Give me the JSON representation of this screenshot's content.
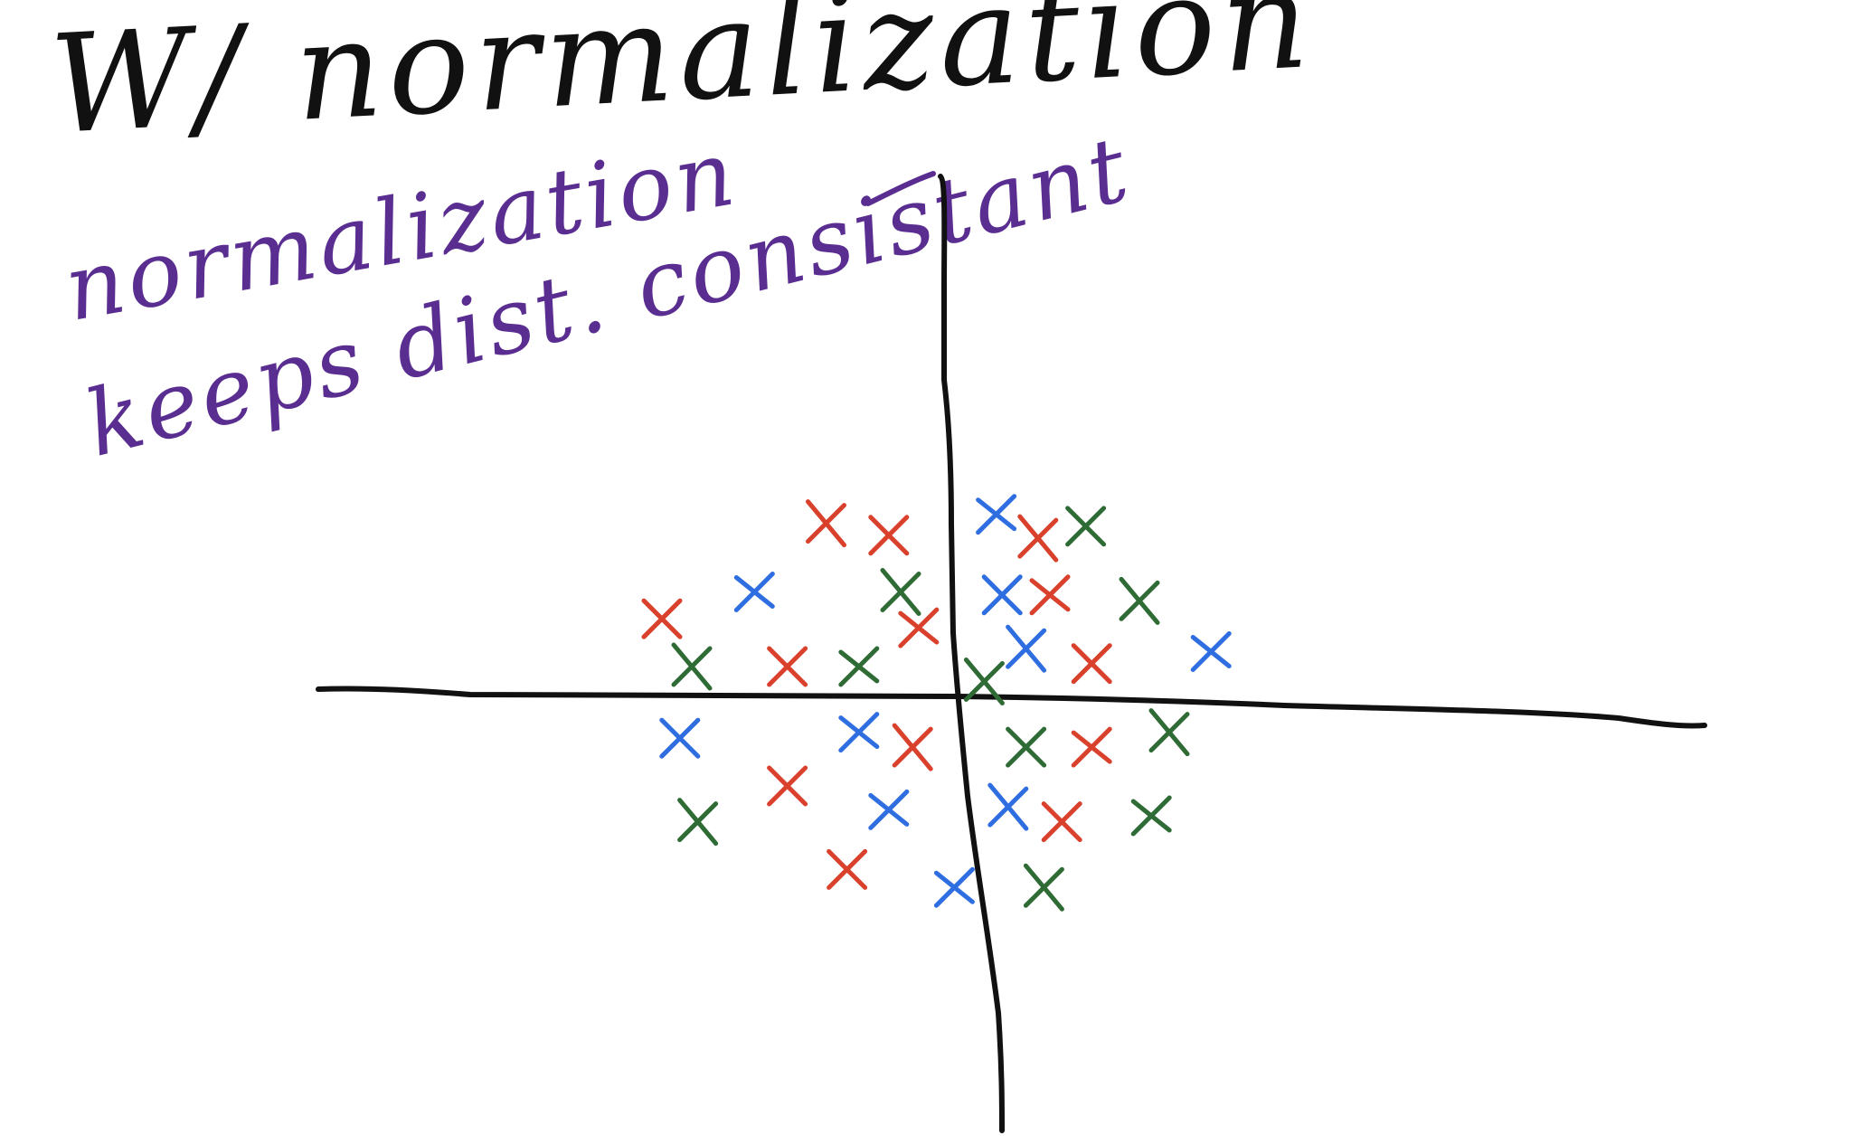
{
  "title": "W/ normalization",
  "annotation": {
    "line1": "normalization",
    "line2": "keeps dist. consistant"
  },
  "colors": {
    "ink": "#111111",
    "annotation": "#5a2d91",
    "red": "#d9412c",
    "blue": "#2f6ee0",
    "green": "#2e6b35"
  },
  "marker": "x",
  "points": [
    {
      "x": -0.45,
      "y": 0.58,
      "c": "red"
    },
    {
      "x": -0.24,
      "y": 0.54,
      "c": "red"
    },
    {
      "x": 0.12,
      "y": 0.61,
      "c": "blue"
    },
    {
      "x": 0.26,
      "y": 0.53,
      "c": "red"
    },
    {
      "x": 0.42,
      "y": 0.57,
      "c": "green"
    },
    {
      "x": -0.69,
      "y": 0.35,
      "c": "blue"
    },
    {
      "x": -0.2,
      "y": 0.35,
      "c": "green"
    },
    {
      "x": 0.14,
      "y": 0.34,
      "c": "blue"
    },
    {
      "x": 0.3,
      "y": 0.34,
      "c": "red"
    },
    {
      "x": 0.6,
      "y": 0.32,
      "c": "green"
    },
    {
      "x": -1.0,
      "y": 0.26,
      "c": "red"
    },
    {
      "x": -0.14,
      "y": 0.23,
      "c": "red"
    },
    {
      "x": -0.9,
      "y": 0.1,
      "c": "green"
    },
    {
      "x": -0.58,
      "y": 0.1,
      "c": "red"
    },
    {
      "x": -0.34,
      "y": 0.1,
      "c": "green"
    },
    {
      "x": 0.22,
      "y": 0.16,
      "c": "blue"
    },
    {
      "x": 0.44,
      "y": 0.11,
      "c": "red"
    },
    {
      "x": 0.84,
      "y": 0.15,
      "c": "blue"
    },
    {
      "x": 0.08,
      "y": 0.05,
      "c": "green"
    },
    {
      "x": -0.94,
      "y": -0.14,
      "c": "blue"
    },
    {
      "x": -0.34,
      "y": -0.12,
      "c": "blue"
    },
    {
      "x": -0.16,
      "y": -0.17,
      "c": "red"
    },
    {
      "x": 0.22,
      "y": -0.17,
      "c": "green"
    },
    {
      "x": 0.44,
      "y": -0.17,
      "c": "red"
    },
    {
      "x": 0.7,
      "y": -0.12,
      "c": "green"
    },
    {
      "x": -0.58,
      "y": -0.3,
      "c": "red"
    },
    {
      "x": -0.24,
      "y": -0.38,
      "c": "blue"
    },
    {
      "x": 0.16,
      "y": -0.37,
      "c": "blue"
    },
    {
      "x": 0.34,
      "y": -0.42,
      "c": "red"
    },
    {
      "x": 0.64,
      "y": -0.4,
      "c": "green"
    },
    {
      "x": -0.88,
      "y": -0.42,
      "c": "green"
    },
    {
      "x": -0.38,
      "y": -0.58,
      "c": "red"
    },
    {
      "x": -0.02,
      "y": -0.64,
      "c": "blue"
    },
    {
      "x": 0.28,
      "y": -0.64,
      "c": "green"
    }
  ]
}
